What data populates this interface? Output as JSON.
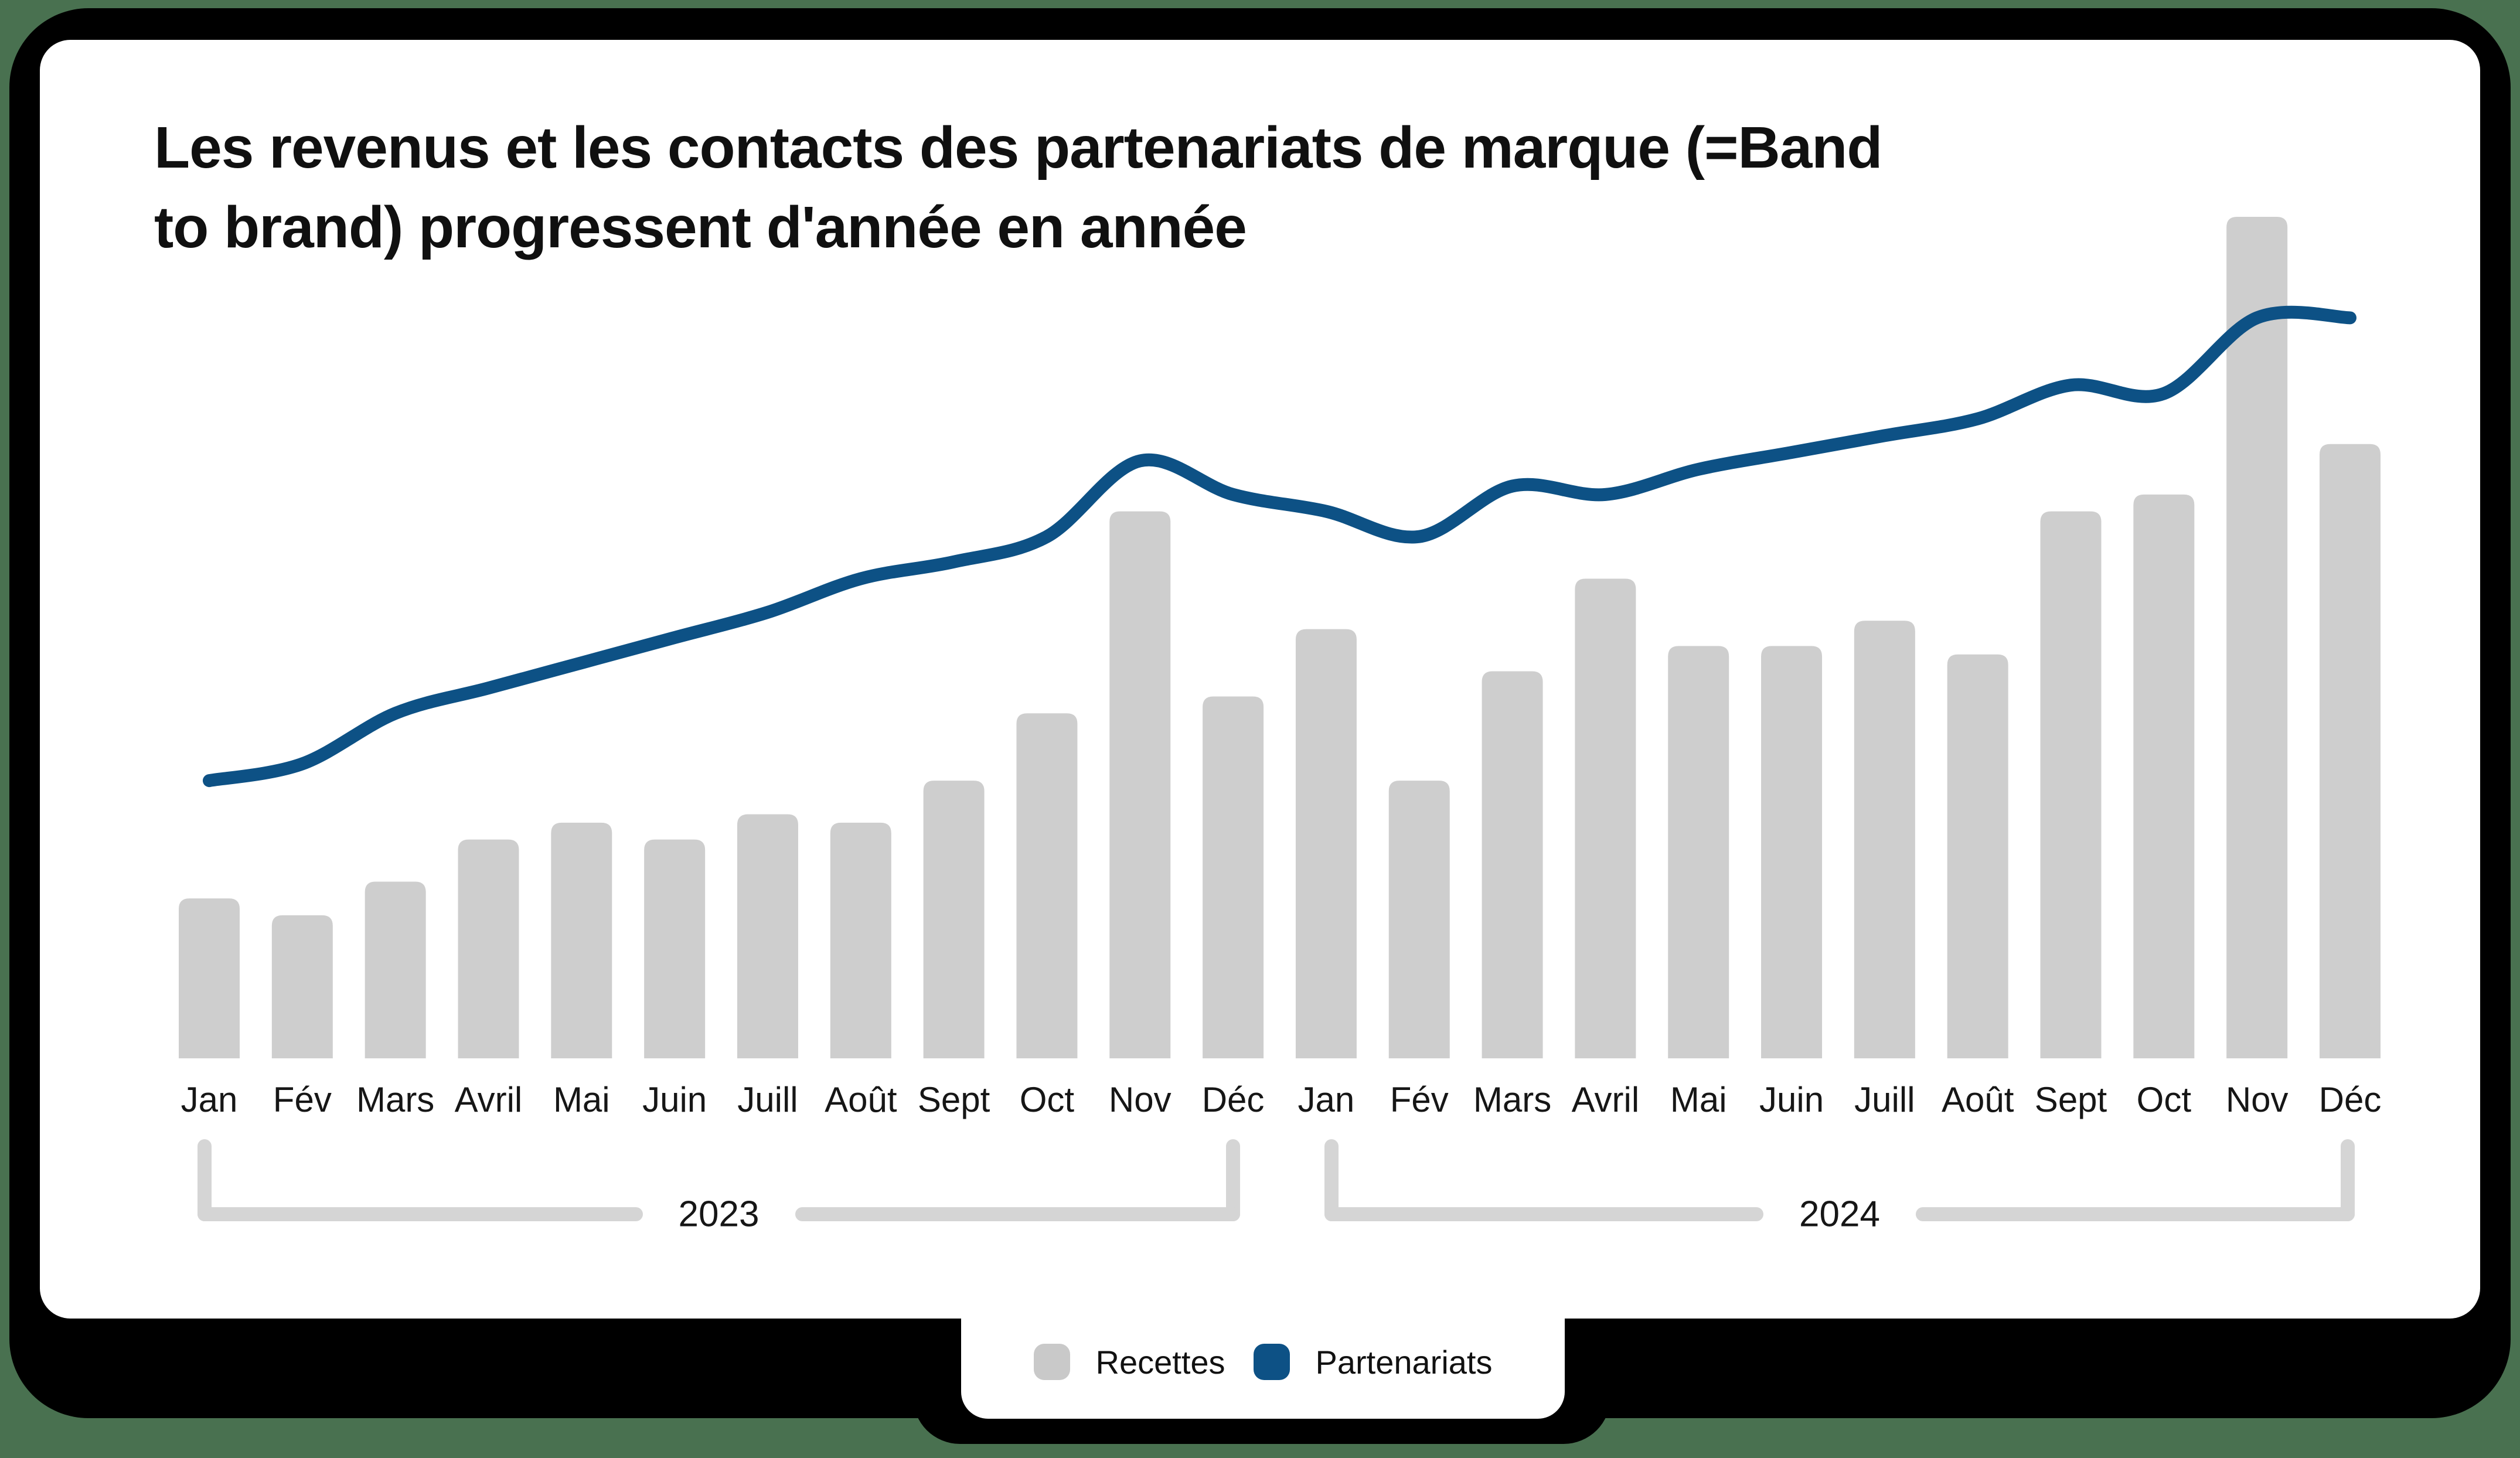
{
  "title": {
    "line1": "Les revenus et les contacts des partenariats de marque (=Band",
    "line2": "to brand) progressent d'année en année"
  },
  "legend": {
    "items": [
      {
        "label": "Recettes",
        "swatch": "gray-rounded-square",
        "color": "#c9c9c9"
      },
      {
        "label": "Partenariats",
        "swatch": "blue-rounded-square",
        "color": "#0d5185"
      }
    ]
  },
  "colors": {
    "background_green": "#497150",
    "frame_black": "#000000",
    "card_white": "#ffffff",
    "bar_gray": "#cecece",
    "line_blue": "#0d5185",
    "bracket_gray": "#d5d5d5",
    "text_dark": "#111111"
  },
  "chart_data": {
    "type": "bar+line",
    "title": "Les revenus et les contacts des partenariats de marque (=Band to brand) progressent d'année en année",
    "month_labels": [
      "Jan",
      "Fév",
      "Mars",
      "Avril",
      "Mai",
      "Juin",
      "Juill",
      "Août",
      "Sept",
      "Oct",
      "Nov",
      "Déc"
    ],
    "categories": [
      "Jan",
      "Fév",
      "Mars",
      "Avril",
      "Mai",
      "Juin",
      "Juill",
      "Août",
      "Sept",
      "Oct",
      "Nov",
      "Déc",
      "Jan",
      "Fév",
      "Mars",
      "Avril",
      "Mai",
      "Juin",
      "Juill",
      "Août",
      "Sept",
      "Oct",
      "Nov",
      "Déc"
    ],
    "years": [
      {
        "label": "2023",
        "months": 12
      },
      {
        "label": "2024",
        "months": 12
      }
    ],
    "series": [
      {
        "name": "Recettes",
        "type": "bar",
        "color": "#cecece",
        "values": [
          19,
          17,
          21,
          26,
          28,
          26,
          29,
          28,
          33,
          41,
          65,
          43,
          51,
          33,
          46,
          57,
          49,
          49,
          52,
          48,
          65,
          67,
          100,
          73
        ]
      },
      {
        "name": "Partenariats",
        "type": "line",
        "color": "#0d5185",
        "values": [
          33,
          35,
          41,
          44,
          47,
          50,
          53,
          57,
          59,
          62,
          71,
          67,
          65,
          62,
          68,
          67,
          70,
          72,
          74,
          76,
          80,
          79,
          88,
          88
        ]
      }
    ],
    "ylim": [
      0,
      100
    ],
    "y_axis_visible": false,
    "gridlines": false,
    "legend_position": "bottom-center-tab"
  }
}
